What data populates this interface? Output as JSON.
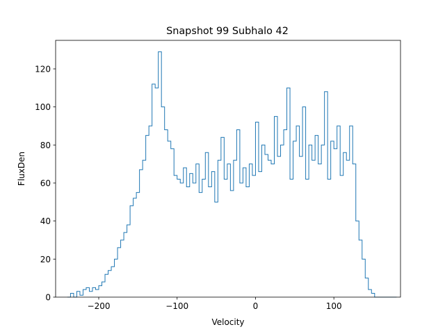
{
  "chart_data": {
    "type": "line",
    "style": "step",
    "title": "Snapshot 99 Subhalo 42",
    "xlabel": "Velocity",
    "ylabel": "FluxDen",
    "xlim": [
      -255,
      185
    ],
    "ylim": [
      0,
      135
    ],
    "xticks": [
      -200,
      -100,
      0,
      100
    ],
    "xtick_labels": [
      "−200",
      "−100",
      "0",
      "100"
    ],
    "yticks": [
      0,
      20,
      40,
      60,
      80,
      100,
      120
    ],
    "ytick_labels": [
      "0",
      "20",
      "40",
      "60",
      "80",
      "100",
      "120"
    ],
    "grid": false,
    "line_color": "#1f77b4",
    "series": [
      {
        "x": [
          -240,
          -236,
          -232,
          -228,
          -224,
          -220,
          -216,
          -212,
          -208,
          -204,
          -200,
          -196,
          -192,
          -188,
          -184,
          -180,
          -176,
          -172,
          -168,
          -164,
          -160,
          -156,
          -152,
          -148,
          -144,
          -140,
          -136,
          -132,
          -128,
          -124,
          -120,
          -116,
          -112,
          -108,
          -104,
          -100,
          -96,
          -92,
          -88,
          -84,
          -80,
          -76,
          -72,
          -68,
          -64,
          -60,
          -56,
          -52,
          -48,
          -44,
          -40,
          -36,
          -32,
          -28,
          -24,
          -20,
          -16,
          -12,
          -8,
          -4,
          0,
          4,
          8,
          12,
          16,
          20,
          24,
          28,
          32,
          36,
          40,
          44,
          48,
          52,
          56,
          60,
          64,
          68,
          72,
          76,
          80,
          84,
          88,
          92,
          96,
          100,
          104,
          108,
          112,
          116,
          120,
          124,
          128,
          132,
          136,
          140,
          144,
          148,
          152,
          156,
          160,
          164,
          168,
          172,
          176,
          180
        ],
        "y": [
          0,
          2,
          0,
          3,
          1,
          4,
          5,
          3,
          5,
          4,
          6,
          8,
          12,
          14,
          16,
          20,
          26,
          30,
          34,
          38,
          48,
          52,
          55,
          67,
          72,
          85,
          90,
          112,
          110,
          129,
          100,
          88,
          82,
          78,
          64,
          62,
          60,
          68,
          58,
          65,
          60,
          70,
          55,
          62,
          76,
          58,
          66,
          50,
          72,
          84,
          62,
          70,
          56,
          72,
          88,
          60,
          68,
          58,
          70,
          64,
          92,
          66,
          80,
          75,
          72,
          70,
          95,
          74,
          80,
          88,
          110,
          62,
          82,
          90,
          74,
          100,
          62,
          80,
          72,
          85,
          70,
          80,
          108,
          62,
          82,
          78,
          90,
          64,
          76,
          72,
          90,
          70,
          40,
          30,
          20,
          10,
          4,
          2,
          0,
          0,
          0,
          0,
          0,
          0,
          0,
          0
        ]
      }
    ]
  }
}
